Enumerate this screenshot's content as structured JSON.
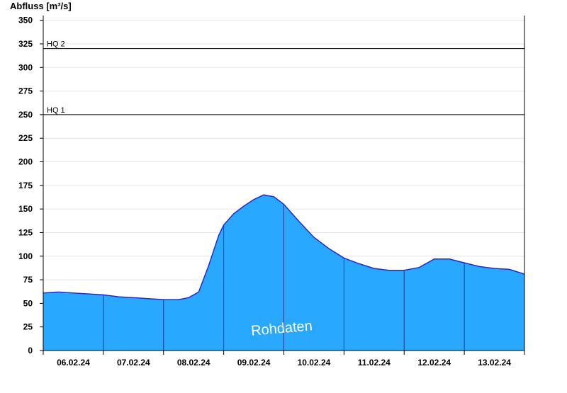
{
  "chart_data": {
    "type": "area",
    "ylabel": "Abfluss [m³/s]",
    "ylim": [
      0,
      360
    ],
    "yticks": [
      0,
      25,
      50,
      75,
      100,
      125,
      150,
      175,
      200,
      225,
      250,
      275,
      300,
      325,
      350
    ],
    "xlim_days": [
      0,
      8
    ],
    "xtick_labels": [
      "06.02.24",
      "07.02.24",
      "08.02.24",
      "09.02.24",
      "10.02.24",
      "11.02.24",
      "12.02.24",
      "13.02.24"
    ],
    "grid": true,
    "fill_color": "#28a8ff",
    "line_color": "#1a2fd6",
    "watermark": "Rohdaten",
    "reference_lines": [
      {
        "label": "HQ 1",
        "value": 250
      },
      {
        "label": "HQ 2",
        "value": 320
      }
    ],
    "series": [
      {
        "x": [
          "06.02.24 00:00",
          "06.02.24 06:00",
          "06.02.24 12:00",
          "06.02.24 18:00",
          "07.02.24 00:00",
          "07.02.24 06:00",
          "07.02.24 12:00",
          "07.02.24 18:00",
          "08.02.24 00:00",
          "08.02.24 06:00",
          "08.02.24 10:00",
          "08.02.24 14:00",
          "08.02.24 18:00",
          "08.02.24 22:00",
          "09.02.24 00:00",
          "09.02.24 04:00",
          "09.02.24 08:00",
          "09.02.24 12:00",
          "09.02.24 16:00",
          "09.02.24 20:00",
          "10.02.24 00:00",
          "10.02.24 06:00",
          "10.02.24 12:00",
          "10.02.24 18:00",
          "11.02.24 00:00",
          "11.02.24 06:00",
          "11.02.24 12:00",
          "11.02.24 18:00",
          "12.02.24 00:00",
          "12.02.24 06:00",
          "12.02.24 12:00",
          "12.02.24 18:00",
          "13.02.24 00:00",
          "13.02.24 06:00",
          "13.02.24 12:00",
          "13.02.24 18:00",
          "14.02.24 00:00"
        ],
        "y": [
          61,
          62,
          61,
          60,
          59,
          57,
          56,
          55,
          54,
          54,
          56,
          62,
          90,
          122,
          133,
          145,
          153,
          160,
          165,
          163,
          155,
          137,
          120,
          108,
          98,
          92,
          87,
          85,
          85,
          88,
          97,
          97,
          93,
          89,
          87,
          86,
          81
        ]
      }
    ]
  }
}
